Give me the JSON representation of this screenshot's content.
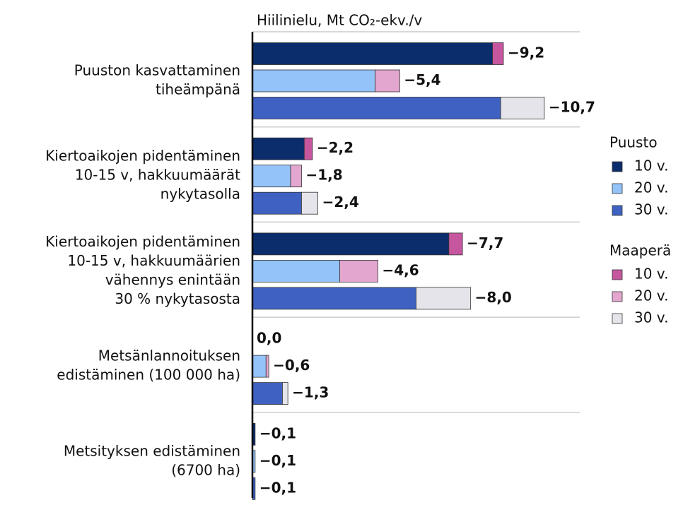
{
  "chart_data": {
    "type": "stacked-bar-horizontal",
    "title": "Hiilinielu, Mt CO₂-ekv./v",
    "categories": [
      [
        "Puuston kasvattaminen",
        "tiheämpänä"
      ],
      [
        "Kiertoaikojen pidentäminen",
        "10-15 v, hakkuumäärät",
        "nykytasolla"
      ],
      [
        "Kiertoaikojen pidentäminen",
        "10-15 v, hakkuumäärien",
        "vähennys enintään",
        "30 % nykytasosta"
      ],
      [
        "Metsänlannoituksen",
        "edistäminen (100 000 ha)"
      ],
      [
        "Metsityksen edistäminen",
        "(6700 ha)"
      ]
    ],
    "series_groups": [
      {
        "name": "Puusto",
        "series": [
          {
            "name": "10 v.",
            "color": "#0b2d6b",
            "values": [
              -8.8,
              -1.9,
              -7.2,
              0.0,
              -0.1
            ]
          },
          {
            "name": "20 v.",
            "color": "#93c3f8",
            "values": [
              -4.5,
              -1.4,
              -3.2,
              -0.5,
              -0.1
            ]
          },
          {
            "name": "30 v.",
            "color": "#3f62c2",
            "values": [
              -9.1,
              -1.8,
              -6.0,
              -1.1,
              -0.1
            ]
          }
        ]
      },
      {
        "name": "Maaperä",
        "series": [
          {
            "name": "10 v.",
            "color": "#c6579f",
            "values": [
              -0.4,
              -0.3,
              -0.5,
              0.0,
              0.0
            ]
          },
          {
            "name": "20 v.",
            "color": "#e2a6cf",
            "values": [
              -0.9,
              -0.4,
              -1.4,
              -0.1,
              0.0
            ]
          },
          {
            "name": "30 v.",
            "color": "#e6e4eb",
            "values": [
              -1.6,
              -0.6,
              -2.0,
              -0.2,
              0.0
            ]
          }
        ]
      }
    ],
    "totals": [
      {
        "values": [
          -9.2,
          -2.2,
          -7.7,
          0.0,
          -0.1
        ],
        "value_labels": [
          "−9,2",
          "−2,2",
          "−7,7",
          "0,0",
          "−0,1"
        ]
      },
      {
        "values": [
          -5.4,
          -1.8,
          -4.6,
          -0.6,
          -0.1
        ],
        "value_labels": [
          "−5,4",
          "−1,8",
          "−4,6",
          "−0,6",
          "−0,1"
        ]
      },
      {
        "values": [
          -10.7,
          -2.4,
          -8.0,
          -1.3,
          -0.1
        ],
        "value_labels": [
          "−10,7",
          "−2,4",
          "−8,0",
          "−1,3",
          "−0,1"
        ]
      }
    ],
    "xlim": [
      0,
      -12
    ]
  }
}
